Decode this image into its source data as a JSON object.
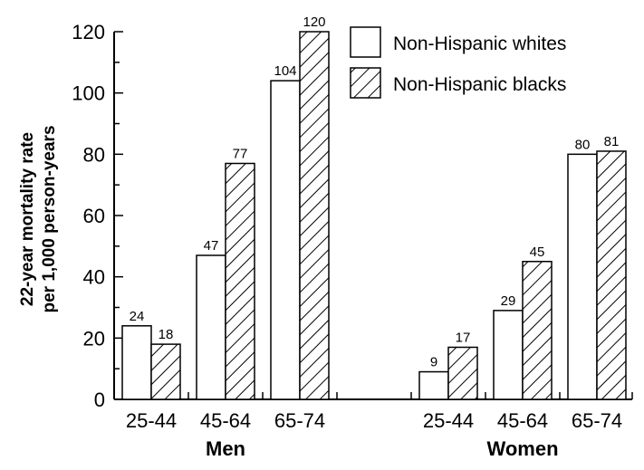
{
  "chart_data": {
    "type": "bar",
    "ylabel_lines": [
      "22-year mortality rate",
      "per 1,000 person-years"
    ],
    "ylim": [
      0,
      120
    ],
    "yticks": [
      0,
      20,
      40,
      60,
      80,
      100,
      120
    ],
    "groups": [
      {
        "label": "Men",
        "categories": [
          "25-44",
          "45-64",
          "65-74"
        ]
      },
      {
        "label": "Women",
        "categories": [
          "25-44",
          "45-64",
          "65-74"
        ]
      }
    ],
    "series": [
      {
        "name": "Non-Hispanic whites",
        "pattern": "solid",
        "color": "#ffffff",
        "values": [
          24,
          47,
          104,
          9,
          29,
          80
        ]
      },
      {
        "name": "Non-Hispanic blacks",
        "pattern": "hatched",
        "color": "#ffffff",
        "values": [
          18,
          77,
          120,
          17,
          45,
          81
        ]
      }
    ],
    "legend_position": "top-right",
    "grid": false
  }
}
